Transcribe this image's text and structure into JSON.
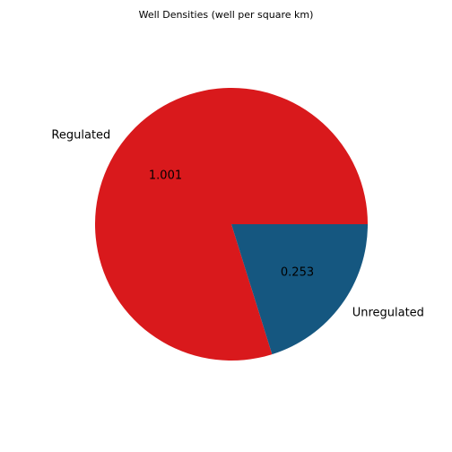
{
  "chart_data": {
    "type": "pie",
    "title": "Well Densities (well per square km)",
    "categories": [
      "Regulated",
      "Unregulated"
    ],
    "values": [
      1.001,
      0.253
    ],
    "value_labels": [
      "1.001",
      "0.253"
    ],
    "colors": [
      "#d9191c",
      "#155780"
    ],
    "start_angle_deg": 0,
    "direction": "counterclockwise",
    "legend": "none"
  }
}
